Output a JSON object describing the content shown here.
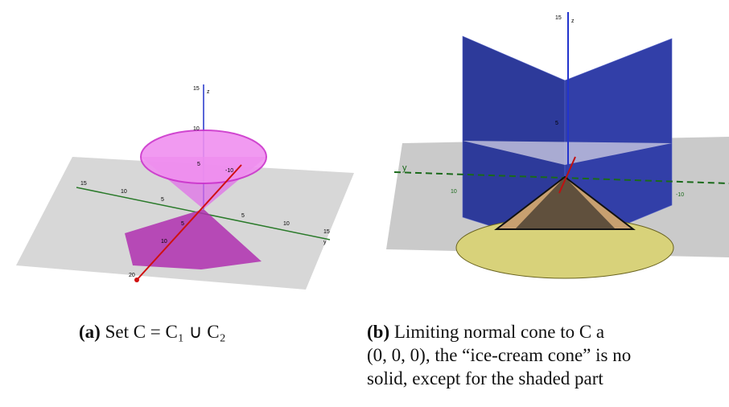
{
  "figures": [
    {
      "label": "(a)",
      "caption": [
        "Set C = C₁ ∪ C₂"
      ],
      "axis_labels": {
        "z": [
          "15",
          "z",
          "10",
          "5"
        ],
        "y": [
          "15",
          "10",
          "5",
          "5",
          "10",
          "15",
          "y"
        ],
        "x": [
          "-10",
          "5",
          "10",
          "20"
        ]
      }
    },
    {
      "label": "(b)",
      "caption": [
        "Limiting normal cone to C a",
        "(0, 0, 0), the “ice-cream cone” is no",
        "solid, except for the shaded part"
      ],
      "axis_labels": {
        "z": [
          "15",
          "z",
          "5"
        ],
        "y": [
          "y",
          "10",
          "-10"
        ]
      }
    }
  ]
}
